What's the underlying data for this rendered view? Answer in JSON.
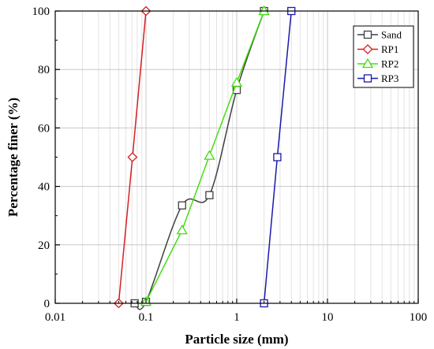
{
  "chart_data": {
    "type": "line",
    "xlabel": "Particle size (mm)",
    "ylabel": "Percentage finer (%)",
    "x_scale": "log",
    "xlim": [
      0.01,
      100
    ],
    "ylim": [
      0,
      100
    ],
    "x_ticks": [
      {
        "value": 0.01,
        "label": "0.01"
      },
      {
        "value": 0.1,
        "label": "0.1"
      },
      {
        "value": 1,
        "label": "1"
      },
      {
        "value": 10,
        "label": "10"
      },
      {
        "value": 100,
        "label": "100"
      }
    ],
    "y_ticks": [
      {
        "value": 0,
        "label": "0"
      },
      {
        "value": 20,
        "label": "20"
      },
      {
        "value": 40,
        "label": "40"
      },
      {
        "value": 60,
        "label": "60"
      },
      {
        "value": 80,
        "label": "80"
      },
      {
        "value": 100,
        "label": "100"
      }
    ],
    "grid": true,
    "legend_position": "top-right",
    "series": [
      {
        "name": "Sand",
        "color": "#404040",
        "marker": "square",
        "points": [
          [
            0.075,
            0
          ],
          [
            0.1,
            0.5
          ],
          [
            0.25,
            33.5
          ],
          [
            0.5,
            37
          ],
          [
            1,
            73
          ],
          [
            2,
            100
          ]
        ]
      },
      {
        "name": "RP1",
        "color": "#d42020",
        "marker": "diamond",
        "points": [
          [
            0.05,
            0
          ],
          [
            0.071,
            50
          ],
          [
            0.1,
            100
          ]
        ]
      },
      {
        "name": "RP2",
        "color": "#44dd11",
        "marker": "triangle",
        "points": [
          [
            0.1,
            0.5
          ],
          [
            0.25,
            25
          ],
          [
            0.5,
            50.5
          ],
          [
            1,
            75.5
          ],
          [
            2,
            100
          ]
        ]
      },
      {
        "name": "RP3",
        "color": "#1a1aaa",
        "marker": "square",
        "points": [
          [
            2,
            0
          ],
          [
            2.8,
            50
          ],
          [
            4,
            100
          ]
        ]
      }
    ]
  }
}
